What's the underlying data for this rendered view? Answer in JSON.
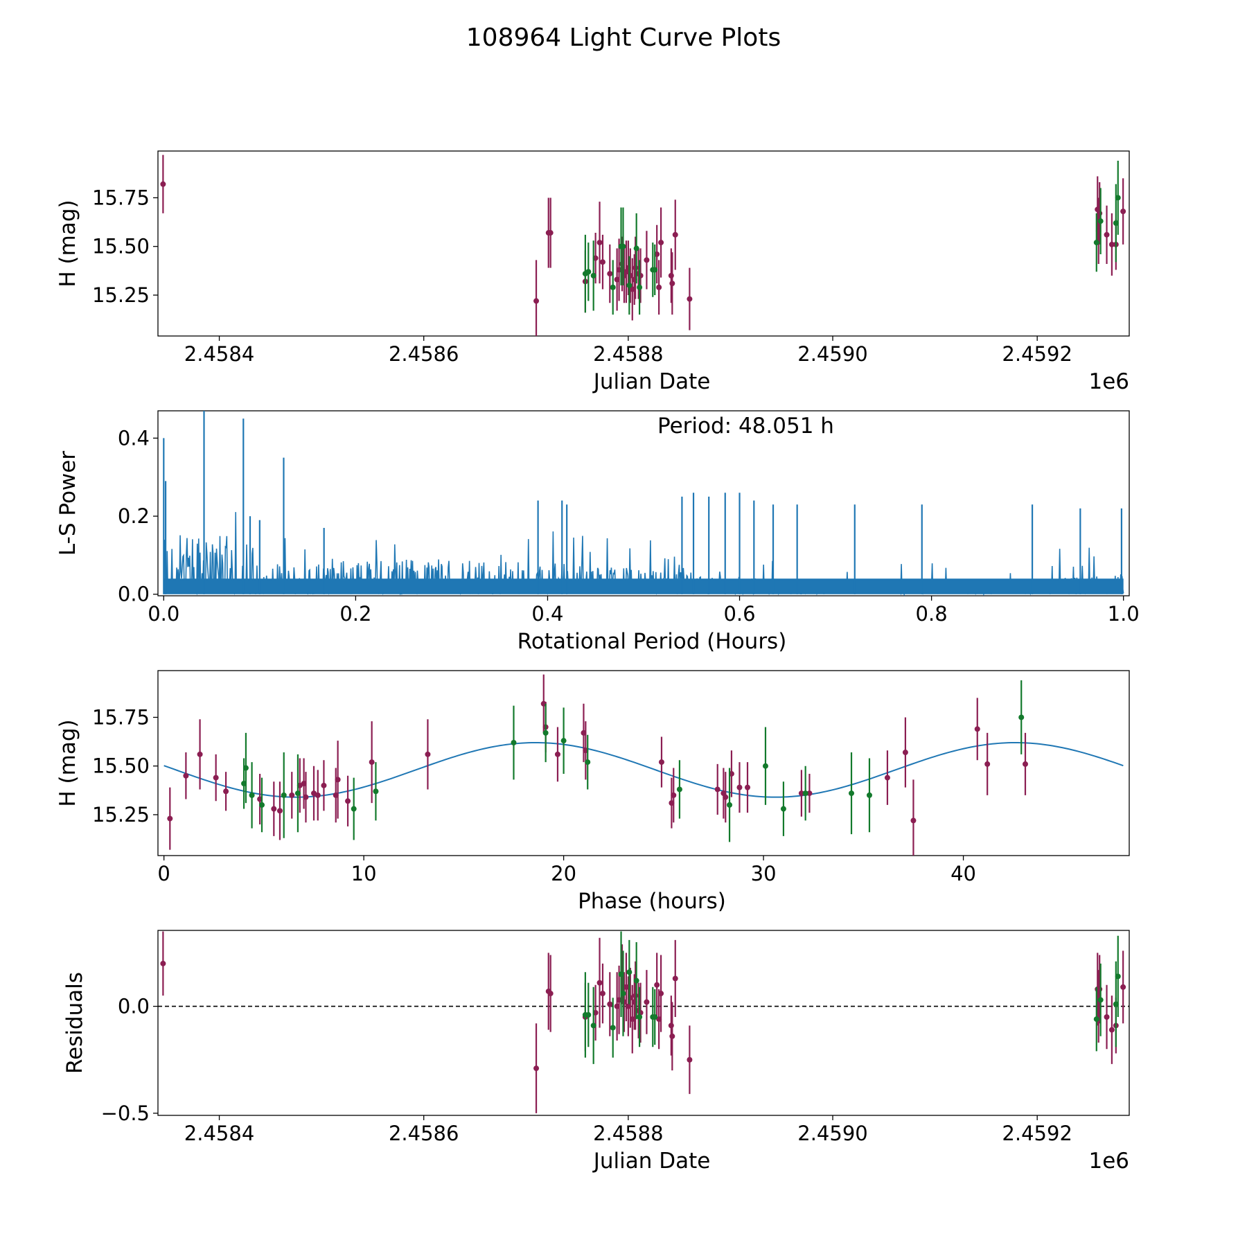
{
  "figure_title": "108964 Light Curve Plots",
  "colors": {
    "magenta": "#8b1e52",
    "green": "#137a2c",
    "line": "#1f77b4",
    "zero_line": "#000000"
  },
  "chart_data": [
    {
      "id": "lightcurve",
      "type": "scatter",
      "xlabel": "Julian Date",
      "ylabel": "H (mag)",
      "x_offset_label": "1e6",
      "xlim": [
        2.45834,
        2.45929
      ],
      "ylim": [
        15.04,
        15.99
      ],
      "xticks": [
        2.4584,
        2.4586,
        2.4588,
        2.459,
        2.4592
      ],
      "xtick_labels": [
        "2.4584",
        "2.4586",
        "2.4588",
        "2.4590",
        "2.4592"
      ],
      "yticks": [
        15.25,
        15.5,
        15.75
      ],
      "ytick_labels": [
        "15.25",
        "15.50",
        "15.75"
      ],
      "series": [
        {
          "name": "magenta",
          "points": [
            [
              2.458345,
              15.82,
              0.15
            ],
            [
              2.45871,
              15.22,
              0.21
            ],
            [
              2.458722,
              15.57,
              0.18
            ],
            [
              2.458724,
              15.57,
              0.18
            ],
            [
              2.458758,
              15.32,
              0.16
            ],
            [
              2.458768,
              15.44,
              0.13
            ],
            [
              2.458772,
              15.52,
              0.21
            ],
            [
              2.458775,
              15.42,
              0.14
            ],
            [
              2.458782,
              15.36,
              0.15
            ],
            [
              2.458789,
              15.33,
              0.16
            ],
            [
              2.458791,
              15.38,
              0.16
            ],
            [
              2.458794,
              15.41,
              0.14
            ],
            [
              2.458796,
              15.35,
              0.14
            ],
            [
              2.458798,
              15.37,
              0.16
            ],
            [
              2.4588,
              15.39,
              0.14
            ],
            [
              2.458802,
              15.35,
              0.14
            ],
            [
              2.458804,
              15.28,
              0.16
            ],
            [
              2.458806,
              15.33,
              0.13
            ],
            [
              2.458807,
              15.39,
              0.16
            ],
            [
              2.45881,
              15.36,
              0.13
            ],
            [
              2.458812,
              15.35,
              0.14
            ],
            [
              2.458818,
              15.43,
              0.15
            ],
            [
              2.458828,
              15.46,
              0.15
            ],
            [
              2.45883,
              15.29,
              0.14
            ],
            [
              2.458832,
              15.52,
              0.18
            ],
            [
              2.458842,
              15.35,
              0.14
            ],
            [
              2.458843,
              15.31,
              0.16
            ],
            [
              2.458846,
              15.56,
              0.18
            ],
            [
              2.45886,
              15.23,
              0.16
            ],
            [
              2.459259,
              15.69,
              0.17
            ],
            [
              2.45926,
              15.58,
              0.17
            ],
            [
              2.459261,
              15.67,
              0.16
            ],
            [
              2.459268,
              15.56,
              0.15
            ],
            [
              2.459273,
              15.51,
              0.16
            ],
            [
              2.459277,
              15.51,
              0.13
            ],
            [
              2.459284,
              15.68,
              0.17
            ]
          ]
        },
        {
          "name": "green",
          "points": [
            [
              2.458758,
              15.36,
              0.2
            ],
            [
              2.458761,
              15.37,
              0.15
            ],
            [
              2.458766,
              15.35,
              0.18
            ],
            [
              2.458785,
              15.29,
              0.14
            ],
            [
              2.458793,
              15.5,
              0.2
            ],
            [
              2.458795,
              15.5,
              0.2
            ],
            [
              2.458801,
              15.3,
              0.15
            ],
            [
              2.458808,
              15.49,
              0.18
            ],
            [
              2.458811,
              15.29,
              0.14
            ],
            [
              2.458824,
              15.38,
              0.14
            ],
            [
              2.458826,
              15.38,
              0.13
            ],
            [
              2.459258,
              15.52,
              0.15
            ],
            [
              2.459262,
              15.63,
              0.17
            ],
            [
              2.459277,
              15.62,
              0.2
            ],
            [
              2.459279,
              15.75,
              0.19
            ]
          ]
        }
      ]
    },
    {
      "id": "periodogram",
      "type": "line",
      "xlabel": "Rotational Period (Hours)",
      "ylabel": "L-S Power",
      "annotation": "Period: 48.051 h",
      "xlim": [
        -0.006,
        1.006
      ],
      "ylim": [
        -0.004,
        0.47
      ],
      "xticks": [
        0.0,
        0.2,
        0.4,
        0.6,
        0.8,
        1.0
      ],
      "xtick_labels": [
        "0.0",
        "0.2",
        "0.4",
        "0.6",
        "0.8",
        "1.0"
      ],
      "yticks": [
        0.0,
        0.2,
        0.4
      ],
      "ytick_labels": [
        "0.0",
        "0.2",
        "0.4"
      ],
      "peaks": [
        [
          0.0,
          0.4
        ],
        [
          0.002,
          0.29
        ],
        [
          0.042,
          0.47
        ],
        [
          0.083,
          0.45
        ],
        [
          0.125,
          0.35
        ],
        [
          0.09,
          0.2
        ],
        [
          0.1,
          0.19
        ],
        [
          0.167,
          0.17
        ],
        [
          0.39,
          0.24
        ],
        [
          0.415,
          0.24
        ],
        [
          0.42,
          0.23
        ],
        [
          0.54,
          0.25
        ],
        [
          0.552,
          0.26
        ],
        [
          0.568,
          0.25
        ],
        [
          0.585,
          0.26
        ],
        [
          0.6,
          0.26
        ],
        [
          0.615,
          0.24
        ],
        [
          0.635,
          0.23
        ],
        [
          0.66,
          0.23
        ],
        [
          0.72,
          0.23
        ],
        [
          0.79,
          0.23
        ],
        [
          0.905,
          0.23
        ],
        [
          0.955,
          0.22
        ],
        [
          0.998,
          0.22
        ]
      ]
    },
    {
      "id": "phased",
      "type": "scatter",
      "xlabel": "Phase (hours)",
      "ylabel": "H (mag)",
      "xlim": [
        -0.3,
        48.3
      ],
      "ylim": [
        15.04,
        15.99
      ],
      "xticks": [
        0,
        10,
        20,
        30,
        40
      ],
      "xtick_labels": [
        "0",
        "10",
        "20",
        "30",
        "40"
      ],
      "yticks": [
        15.25,
        15.5,
        15.75
      ],
      "ytick_labels": [
        "15.25",
        "15.50",
        "15.75"
      ],
      "fit": {
        "mean": 15.48,
        "amplitude": 0.14,
        "period_phase": 24.0,
        "peak_at": 18.6
      },
      "series": [
        {
          "name": "magenta",
          "points": [
            [
              0.3,
              15.23,
              0.16
            ],
            [
              1.1,
              15.45,
              0.12
            ],
            [
              1.8,
              15.56,
              0.18
            ],
            [
              2.6,
              15.44,
              0.12
            ],
            [
              3.1,
              15.37,
              0.1
            ],
            [
              4.8,
              15.33,
              0.13
            ],
            [
              5.5,
              15.28,
              0.14
            ],
            [
              5.8,
              15.27,
              0.15
            ],
            [
              6.4,
              15.35,
              0.12
            ],
            [
              6.8,
              15.4,
              0.14
            ],
            [
              7.0,
              15.41,
              0.13
            ],
            [
              7.1,
              15.34,
              0.13
            ],
            [
              7.5,
              15.36,
              0.14
            ],
            [
              7.7,
              15.35,
              0.13
            ],
            [
              8.0,
              15.4,
              0.13
            ],
            [
              8.6,
              15.35,
              0.14
            ],
            [
              8.7,
              15.43,
              0.2
            ],
            [
              9.2,
              15.32,
              0.13
            ],
            [
              10.4,
              15.52,
              0.21
            ],
            [
              13.2,
              15.56,
              0.18
            ],
            [
              19.0,
              15.82,
              0.15
            ],
            [
              19.1,
              15.7,
              0.13
            ],
            [
              19.7,
              15.56,
              0.14
            ],
            [
              21.0,
              15.67,
              0.15
            ],
            [
              21.1,
              15.58,
              0.15
            ],
            [
              24.9,
              15.52,
              0.13
            ],
            [
              25.4,
              15.31,
              0.13
            ],
            [
              25.5,
              15.35,
              0.14
            ],
            [
              27.7,
              15.38,
              0.13
            ],
            [
              28.0,
              15.36,
              0.13
            ],
            [
              28.1,
              15.34,
              0.13
            ],
            [
              28.4,
              15.46,
              0.12
            ],
            [
              28.8,
              15.39,
              0.13
            ],
            [
              29.2,
              15.39,
              0.13
            ],
            [
              31.9,
              15.36,
              0.12
            ],
            [
              32.3,
              15.36,
              0.1
            ],
            [
              36.2,
              15.44,
              0.14
            ],
            [
              37.1,
              15.57,
              0.18
            ],
            [
              37.5,
              15.22,
              0.21
            ],
            [
              40.7,
              15.69,
              0.16
            ],
            [
              41.2,
              15.51,
              0.16
            ],
            [
              43.1,
              15.51,
              0.16
            ]
          ]
        },
        {
          "name": "green",
          "points": [
            [
              4.0,
              15.41,
              0.13
            ],
            [
              4.1,
              15.49,
              0.18
            ],
            [
              4.4,
              15.35,
              0.17
            ],
            [
              4.9,
              15.3,
              0.14
            ],
            [
              6.0,
              15.35,
              0.22
            ],
            [
              6.7,
              15.36,
              0.2
            ],
            [
              9.5,
              15.28,
              0.16
            ],
            [
              10.6,
              15.37,
              0.15
            ],
            [
              17.5,
              15.62,
              0.19
            ],
            [
              19.1,
              15.67,
              0.15
            ],
            [
              20.0,
              15.63,
              0.17
            ],
            [
              21.2,
              15.52,
              0.14
            ],
            [
              25.8,
              15.38,
              0.15
            ],
            [
              28.3,
              15.3,
              0.19
            ],
            [
              30.1,
              15.5,
              0.2
            ],
            [
              31.0,
              15.28,
              0.14
            ],
            [
              32.1,
              15.36,
              0.14
            ],
            [
              34.4,
              15.36,
              0.21
            ],
            [
              35.3,
              15.35,
              0.19
            ],
            [
              42.9,
              15.75,
              0.19
            ]
          ]
        }
      ]
    },
    {
      "id": "residuals",
      "type": "scatter",
      "xlabel": "Julian Date",
      "ylabel": "Residuals",
      "x_offset_label": "1e6",
      "xlim": [
        2.45834,
        2.45929
      ],
      "ylim": [
        -0.51,
        0.355
      ],
      "xticks": [
        2.4584,
        2.4586,
        2.4588,
        2.459,
        2.4592
      ],
      "xtick_labels": [
        "2.4584",
        "2.4586",
        "2.4588",
        "2.4590",
        "2.4592"
      ],
      "yticks": [
        -0.5,
        0.0
      ],
      "ytick_labels": [
        "−0.5",
        "0.0"
      ],
      "zero_line": true,
      "series": [
        {
          "name": "magenta",
          "points": [
            [
              2.458345,
              0.2,
              0.15
            ],
            [
              2.45871,
              -0.29,
              0.21
            ],
            [
              2.458722,
              0.07,
              0.18
            ],
            [
              2.458724,
              0.06,
              0.18
            ],
            [
              2.458758,
              -0.05,
              0.16
            ],
            [
              2.458768,
              -0.03,
              0.13
            ],
            [
              2.458772,
              0.11,
              0.21
            ],
            [
              2.458775,
              0.06,
              0.14
            ],
            [
              2.458782,
              0.01,
              0.15
            ],
            [
              2.458789,
              0.0,
              0.16
            ],
            [
              2.458791,
              0.03,
              0.16
            ],
            [
              2.458794,
              0.15,
              0.14
            ],
            [
              2.458796,
              0.02,
              0.14
            ],
            [
              2.458798,
              0.09,
              0.16
            ],
            [
              2.4588,
              0.0,
              0.14
            ],
            [
              2.458802,
              0.04,
              0.14
            ],
            [
              2.458804,
              -0.06,
              0.16
            ],
            [
              2.458806,
              0.02,
              0.13
            ],
            [
              2.458807,
              0.05,
              0.16
            ],
            [
              2.45881,
              -0.02,
              0.13
            ],
            [
              2.458812,
              -0.03,
              0.14
            ],
            [
              2.458818,
              0.02,
              0.15
            ],
            [
              2.458828,
              0.1,
              0.15
            ],
            [
              2.45883,
              -0.06,
              0.14
            ],
            [
              2.458832,
              0.06,
              0.18
            ],
            [
              2.458842,
              -0.09,
              0.14
            ],
            [
              2.458843,
              -0.14,
              0.16
            ],
            [
              2.458846,
              0.13,
              0.18
            ],
            [
              2.45886,
              -0.25,
              0.16
            ],
            [
              2.459259,
              0.08,
              0.17
            ],
            [
              2.45926,
              0.0,
              0.17
            ],
            [
              2.459261,
              0.08,
              0.16
            ],
            [
              2.459268,
              -0.05,
              0.15
            ],
            [
              2.459273,
              -0.11,
              0.16
            ],
            [
              2.459277,
              -0.09,
              0.13
            ],
            [
              2.459284,
              0.09,
              0.17
            ]
          ]
        },
        {
          "name": "green",
          "points": [
            [
              2.458758,
              -0.04,
              0.2
            ],
            [
              2.458761,
              -0.04,
              0.15
            ],
            [
              2.458766,
              -0.09,
              0.18
            ],
            [
              2.458785,
              -0.1,
              0.14
            ],
            [
              2.458793,
              0.15,
              0.2
            ],
            [
              2.458795,
              0.06,
              0.2
            ],
            [
              2.458801,
              0.16,
              0.15
            ],
            [
              2.458808,
              0.12,
              0.18
            ],
            [
              2.458811,
              -0.05,
              0.14
            ],
            [
              2.458824,
              -0.05,
              0.14
            ],
            [
              2.458826,
              -0.05,
              0.13
            ],
            [
              2.459258,
              -0.06,
              0.15
            ],
            [
              2.459262,
              0.03,
              0.17
            ],
            [
              2.459277,
              0.01,
              0.2
            ],
            [
              2.459279,
              0.14,
              0.19
            ]
          ]
        }
      ]
    }
  ]
}
